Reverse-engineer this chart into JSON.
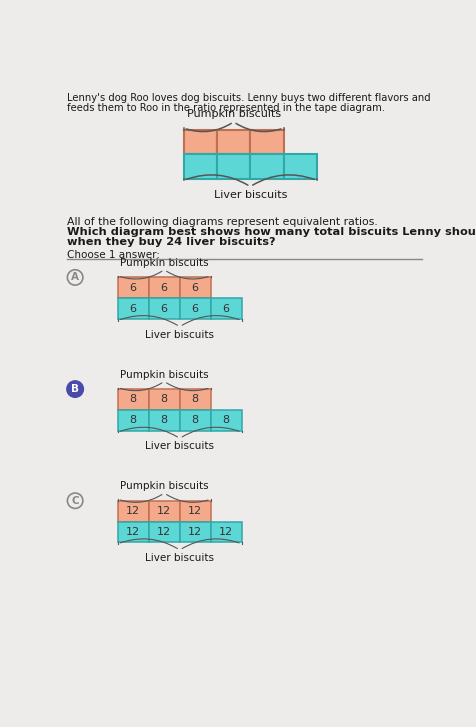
{
  "title_line1": "Lenny's dog Roo loves dog biscuits. Lenny buys two different flavors and",
  "title_line2": "feeds them to Roo in the ratio represented in the tape diagram.",
  "pumpkin_color": "#F4A98A",
  "liver_color": "#5DD6D6",
  "pumpkin_border": "#c07050",
  "liver_border": "#30a8a8",
  "question_line1": "All of the following diagrams represent equivalent ratios.",
  "question_line2": "Which diagram best shows how many total biscuits Lenny should buy",
  "question_line3": "when they buy 24 liver biscuits?",
  "choose_text": "Choose 1 answer:",
  "options": [
    {
      "label": "A",
      "pumpkin_label": "Pumpkin biscuits",
      "liver_label": "Liver biscuits",
      "pumpkin_cells": 3,
      "liver_cells": 4,
      "cell_value": 6,
      "selected": false
    },
    {
      "label": "B",
      "pumpkin_label": "Pumpkin biscuits",
      "liver_label": "Liver biscuits",
      "pumpkin_cells": 3,
      "liver_cells": 4,
      "cell_value": 8,
      "selected": true
    },
    {
      "label": "C",
      "pumpkin_label": "Pumpkin biscuits",
      "liver_label": "Liver biscuits",
      "pumpkin_cells": 3,
      "liver_cells": 4,
      "cell_value": 12,
      "selected": false
    }
  ],
  "bg_color": "#eeecea",
  "text_color": "#1a1a1a",
  "circle_selected_color": "#4a4aaa",
  "circle_unselected_color": "#888888"
}
